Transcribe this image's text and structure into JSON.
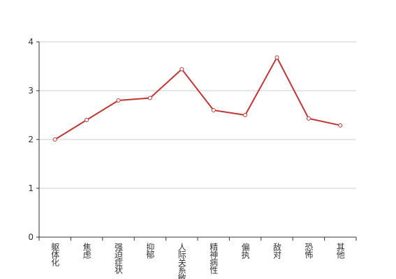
{
  "chart_data": {
    "type": "line",
    "categories": [
      "躯体化",
      "焦虑",
      "强迫症状",
      "抑郁",
      "人际关系敏感",
      "精神病性",
      "偏执",
      "敌对",
      "恐怖",
      "其他"
    ],
    "series": [
      {
        "color": "#c23531",
        "values": [
          2.0,
          2.4,
          2.8,
          2.85,
          3.44,
          2.6,
          2.5,
          3.68,
          2.43,
          2.29
        ]
      }
    ],
    "ylim": [
      0,
      4
    ],
    "yticks": [
      0,
      1,
      2,
      3,
      4
    ],
    "grid": true
  }
}
